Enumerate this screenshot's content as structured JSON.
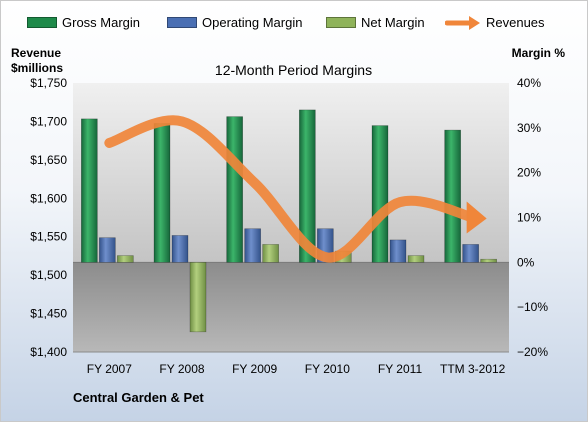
{
  "company": "Central Garden & Pet",
  "colors": {
    "gross": "#1e8a4a",
    "operating": "#4a6fb3",
    "net": "#8fb35a",
    "revenue": "#f0863a",
    "plot_bg_top": "#e6e6e6",
    "plot_bg_bottom": "#9a9a9a"
  },
  "chart_data": {
    "type": "bar",
    "title": "12-Month Period Margins",
    "ylabel_left": "Revenue\n$millions",
    "ylabel_right": "Margin %",
    "categories": [
      "FY 2007",
      "FY 2008",
      "FY 2009",
      "FY 2010",
      "FY 2011",
      "TTM 3-2012"
    ],
    "y_left": {
      "min": 1400,
      "max": 1750,
      "step": 50,
      "format": "$#,##0"
    },
    "y_right": {
      "min": -20,
      "max": 40,
      "step": 10,
      "format": "#%"
    },
    "series": [
      {
        "name": "Gross Margin",
        "type": "bar",
        "axis": "right",
        "values": [
          32,
          31,
          32.5,
          34,
          30.5,
          29.5
        ]
      },
      {
        "name": "Operating Margin",
        "type": "bar",
        "axis": "right",
        "values": [
          5.5,
          6,
          7.5,
          7.5,
          5,
          4
        ]
      },
      {
        "name": "Net Margin",
        "type": "bar",
        "axis": "right",
        "values": [
          1.5,
          -15.5,
          4,
          2.5,
          1.5,
          0.7
        ]
      },
      {
        "name": "Revenues",
        "type": "line",
        "axis": "left",
        "values": [
          1672,
          1700,
          1620,
          1523,
          1595,
          1575
        ]
      }
    ],
    "legend_position": "top",
    "grid": false
  }
}
